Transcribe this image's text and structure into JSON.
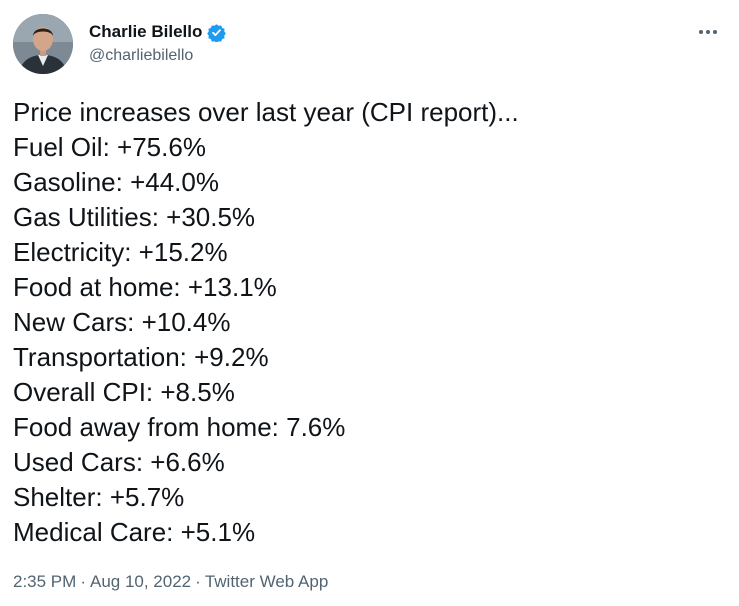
{
  "author": {
    "display_name": "Charlie Bilello",
    "handle": "@charliebilello",
    "verified": true,
    "avatar_icon": "profile-photo",
    "verified_color": "#1d9bf0"
  },
  "menu": {
    "more_icon": "ellipsis-icon"
  },
  "tweet": {
    "lines": [
      "Price increases over last year (CPI report)...",
      "Fuel Oil: +75.6%",
      "Gasoline: +44.0%",
      "Gas Utilities: +30.5%",
      "Electricity: +15.2%",
      "Food at home: +13.1%",
      "New Cars: +10.4%",
      "Transportation: +9.2%",
      "Overall CPI: +8.5%",
      "Food away from home: 7.6%",
      "Used Cars: +6.6%",
      "Shelter: +5.7%",
      "Medical Care: +5.1%"
    ]
  },
  "meta": {
    "time": "2:35 PM",
    "separator": "·",
    "date": "Aug 10, 2022",
    "source": "Twitter Web App"
  },
  "colors": {
    "text_primary": "#0f1419",
    "text_secondary": "#536471",
    "background": "#ffffff"
  }
}
